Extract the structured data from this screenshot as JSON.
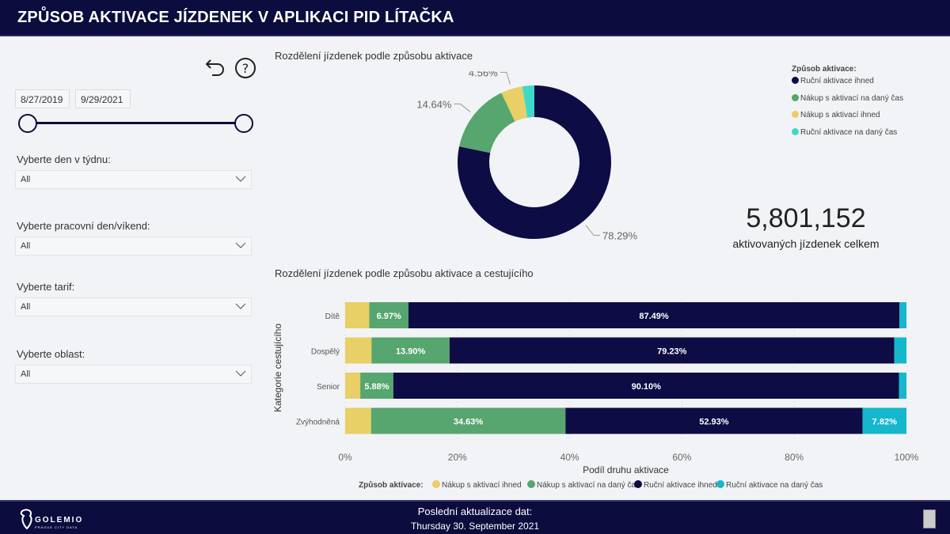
{
  "header": {
    "title": "ZPŮSOB AKTIVACE JÍZDENEK V APLIKACI PID LÍTAČKA"
  },
  "filters": {
    "date_from": "8/27/2019",
    "date_to": "9/29/2021",
    "date_range_fraction": [
      0,
      1
    ],
    "day_label": "Vyberte den v týdnu:",
    "day_value": "All",
    "workday_label": "Vyberte pracovní den/víkend:",
    "workday_value": "All",
    "tariff_label": "Vyberte tarif:",
    "tariff_value": "All",
    "area_label": "Vyberte oblast:",
    "area_value": "All"
  },
  "icons": {
    "undo": "undo-icon",
    "help": "help-icon"
  },
  "colors": {
    "navy": "#0e0c45",
    "green": "#57a56f",
    "yellow": "#e8cf66",
    "teal": "#3fd9c9",
    "teal_bar": "#14b7cc"
  },
  "kpi": {
    "value": "5,801,152",
    "label": "aktivovaných jízdenek celkem"
  },
  "chart_data": [
    {
      "type": "pie",
      "title": "Rozdělení jízdenek podle způsobu aktivace",
      "donut": true,
      "legend_title": "Způsob aktivace:",
      "legend_position": "top-right",
      "slices": [
        {
          "name": "Ruční aktivace ihned",
          "value": 78.29,
          "label": "78.29%",
          "color": "#0e0c45"
        },
        {
          "name": "Nákup s aktivací na daný čas",
          "value": 14.64,
          "label": "14.64%",
          "color": "#57a56f"
        },
        {
          "name": "Nákup s aktivací ihned",
          "value": 4.56,
          "label": "4.56%",
          "color": "#e8cf66"
        },
        {
          "name": "Ruční aktivace na daný čas",
          "value": 2.51,
          "label": "",
          "color": "#3fd9c9"
        }
      ]
    },
    {
      "type": "bar",
      "orientation": "horizontal",
      "stacked": "100%",
      "title": "Rozdělení jízdenek podle způsobu aktivace a cestujícího",
      "xlabel": "Podíl druhu aktivace",
      "ylabel": "Kategorie cestujícího",
      "xlim": [
        0,
        100
      ],
      "xticks": [
        "0%",
        "20%",
        "40%",
        "60%",
        "80%",
        "100%"
      ],
      "grid": true,
      "legend_title": "Způsob aktivace:",
      "legend_position": "bottom",
      "categories": [
        "Dítě",
        "Dospělý",
        "Senior",
        "Zvýhodněná"
      ],
      "series": [
        {
          "name": "Nákup s aktivací ihned",
          "color": "#e8cf66",
          "values": [
            4.3,
            4.7,
            2.7,
            4.62
          ],
          "labels": [
            "",
            "",
            "",
            ""
          ]
        },
        {
          "name": "Nákup s aktivací na daný čas",
          "color": "#57a56f",
          "values": [
            6.97,
            13.9,
            5.88,
            34.63
          ],
          "labels": [
            "6.97%",
            "13.90%",
            "5.88%",
            "34.63%"
          ]
        },
        {
          "name": "Ruční aktivace ihned",
          "color": "#0e0c45",
          "values": [
            87.49,
            79.23,
            90.1,
            52.93
          ],
          "labels": [
            "87.49%",
            "79.23%",
            "90.10%",
            "52.93%"
          ]
        },
        {
          "name": "Ruční aktivace na daný čas",
          "color": "#14b7cc",
          "values": [
            1.24,
            2.17,
            1.32,
            7.82
          ],
          "labels": [
            "",
            "",
            "",
            "7.82%"
          ]
        }
      ]
    }
  ],
  "footer": {
    "update_label": "Poslední aktualizace dat:",
    "update_date": "Thursday 30. September 2021",
    "logo": "GOLEMIO",
    "logo_sub": "PRAGUE CITY DATA"
  }
}
